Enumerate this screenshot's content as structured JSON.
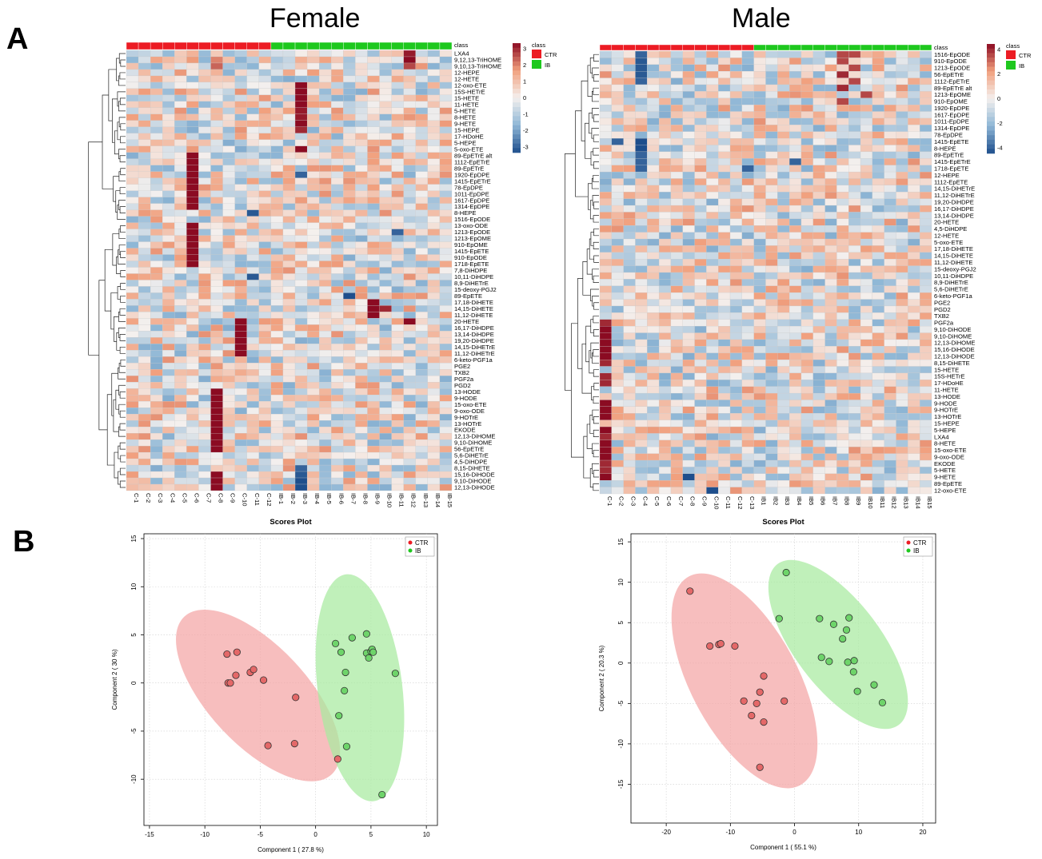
{
  "panels": {
    "a": "A",
    "b": "B"
  },
  "colors": {
    "ctr": "#ec1c24",
    "ib": "#1ec81e",
    "ctr_fill": "#f4a5a5",
    "ib_fill": "#a8eaa0",
    "heat_low": "#1e4e8c",
    "heat_mid": "#f4f0ee",
    "heat_high": "#8b0b22"
  },
  "chart_data": [
    {
      "type": "heatmap",
      "title": "Female",
      "annotation_label": "class",
      "legend": {
        "title": "class",
        "items": [
          "CTR",
          "IB"
        ]
      },
      "scale_ticks": [
        "3",
        "2",
        "1",
        "0",
        "-1",
        "-2",
        "-3"
      ],
      "dendrogram": true,
      "columns": [
        "C-1",
        "C-2",
        "C-3",
        "C-4",
        "C-5",
        "C-6",
        "C-7",
        "C-8",
        "C-9",
        "C-10",
        "C-11",
        "C-12",
        "IB-1",
        "IB-2",
        "IB-3",
        "IB-4",
        "IB-5",
        "IB-6",
        "IB-7",
        "IB-8",
        "IB-9",
        "IB-10",
        "IB-11",
        "IB-12",
        "IB-13",
        "IB-14",
        "IB-15"
      ],
      "column_class": [
        "CTR",
        "CTR",
        "CTR",
        "CTR",
        "CTR",
        "CTR",
        "CTR",
        "CTR",
        "CTR",
        "CTR",
        "CTR",
        "CTR",
        "IB",
        "IB",
        "IB",
        "IB",
        "IB",
        "IB",
        "IB",
        "IB",
        "IB",
        "IB",
        "IB",
        "IB",
        "IB",
        "IB",
        "IB"
      ],
      "rows": [
        "LXA4",
        "9,12,13-TriHOME",
        "9,10,13-TriHOME",
        "12-HEPE",
        "12-HETE",
        "12-oxo-ETE",
        "15S-HETrE",
        "15-HETE",
        "11-HETE",
        "5-HETE",
        "8-HETE",
        "9-HETE",
        "15-HEPE",
        "17-HDoHE",
        "5-HEPE",
        "5-oxo-ETE",
        "89-EpETrE alt",
        "1112-EpETrE",
        "89-EpETrE",
        "1920-EpDPE",
        "1415-EpETrE",
        "78-EpDPE",
        "1011-EpDPE",
        "1617-EpDPE",
        "1314-EpDPE",
        "8-HEPE",
        "1516-EpODE",
        "13-oxo-ODE",
        "1213-EpODE",
        "1213-EpOME",
        "910-EpOME",
        "1415-EpETE",
        "910-EpODE",
        "1718-EpETE",
        "7,8-DiHDPE",
        "10,11-DiHDPE",
        "8,9-DiHETrE",
        "15-deoxy-PGJ2",
        "89-EpETE",
        "17,18-DiHETE",
        "14,15-DiHETE",
        "11,12-DiHETE",
        "20-HETE",
        "16,17-DiHDPE",
        "13,14-DiHDPE",
        "19,20-DiHDPE",
        "14,15-DiHETrE",
        "11,12-DiHETrE",
        "6-keto-PGF1a",
        "PGE2",
        "TXB2",
        "PGF2a",
        "PGD2",
        "13-HODE",
        "9-HODE",
        "15-oxo-ETE",
        "9-oxo-ODE",
        "9-HOTrE",
        "13-HOTrE",
        "EKODE",
        "12,13-DiHOME",
        "9,10-DiHOME",
        "56-EpETrE",
        "5,6-DiHETrE",
        "4,5-DiHDPE",
        "8,15-DiHETE",
        "15,16-DiHODE",
        "9,10-DiHODE",
        "12,13-DiHODE"
      ]
    },
    {
      "type": "heatmap",
      "title": "Male",
      "annotation_label": "class",
      "legend": {
        "title": "class",
        "items": [
          "CTR",
          "IB"
        ]
      },
      "scale_ticks": [
        "4",
        "2",
        "0",
        "-2",
        "-4"
      ],
      "dendrogram": true,
      "columns": [
        "C-1",
        "C-2",
        "C-3",
        "C-4",
        "C-5",
        "C-6",
        "C-7",
        "C-8",
        "C-9",
        "C-10",
        "C-11",
        "C-12",
        "C-13",
        "IB1",
        "IB2",
        "IB3",
        "IB4",
        "IB5",
        "IB6",
        "IB7",
        "IB8",
        "IB9",
        "IB10",
        "IB11",
        "IB12",
        "IB13",
        "IB14",
        "IB15"
      ],
      "column_class": [
        "CTR",
        "CTR",
        "CTR",
        "CTR",
        "CTR",
        "CTR",
        "CTR",
        "CTR",
        "CTR",
        "CTR",
        "CTR",
        "CTR",
        "CTR",
        "IB",
        "IB",
        "IB",
        "IB",
        "IB",
        "IB",
        "IB",
        "IB",
        "IB",
        "IB",
        "IB",
        "IB",
        "IB",
        "IB",
        "IB"
      ],
      "rows": [
        "1516-EpODE",
        "910-EpODE",
        "1213-EpODE",
        "56-EpETrE",
        "1112-EpETrE",
        "89-EpETrE alt",
        "1213-EpOME",
        "910-EpOME",
        "1920-EpDPE",
        "1617-EpDPE",
        "1011-EpDPE",
        "1314-EpDPE",
        "78-EpDPE",
        "1415-EpETE",
        "8-HEPE",
        "89-EpETrE",
        "1415-EpETrE",
        "1718-EpETE",
        "12-HEPE",
        "1112-EpETE",
        "14,15-DiHETrE",
        "11,12-DiHETrE",
        "19,20-DiHDPE",
        "16,17-DiHDPE",
        "13,14-DiHDPE",
        "20-HETE",
        "4,5-DiHDPE",
        "12-HETE",
        "5-oxo-ETE",
        "17,18-DiHETE",
        "14,15-DiHETE",
        "11,12-DiHETE",
        "15-deoxy-PGJ2",
        "10,11-DiHDPE",
        "8,9-DiHETrE",
        "5,6-DiHETrE",
        "6-keto-PGF1a",
        "PGE2",
        "PGD2",
        "TXB2",
        "PGF2a",
        "9,10-DiHODE",
        "9,10-DiHOME",
        "12,13-DiHOME",
        "15,16-DiHODE",
        "12,13-DiHODE",
        "8,15-DiHETE",
        "15-HETE",
        "15S-HETrE",
        "17-HDoHE",
        "11-HETE",
        "13-HODE",
        "9-HODE",
        "9-HOTrE",
        "13-HOTrE",
        "15-HEPE",
        "5-HEPE",
        "LXA4",
        "8-HETE",
        "15-oxo-ETE",
        "9-oxo-ODE",
        "EKODE",
        "5-HETE",
        "9-HETE",
        "89-EpETE",
        "12-oxo-ETE"
      ]
    },
    {
      "type": "scatter",
      "title": "Scores Plot",
      "xlabel": "Component 1 ( 27.8 %)",
      "ylabel": "Component 2 ( 30 %)",
      "xlim": [
        -15.5,
        11
      ],
      "ylim": [
        -14.8,
        15.5
      ],
      "xticks": [
        -15,
        -10,
        -5,
        0,
        5,
        10
      ],
      "yticks": [
        -10,
        -5,
        0,
        5,
        10,
        15
      ],
      "legend_position": "top-right",
      "series": [
        {
          "name": "CTR",
          "points": [
            [
              -8.0,
              3.0
            ],
            [
              -7.1,
              3.2
            ],
            [
              -7.2,
              0.8
            ],
            [
              -7.9,
              0.0
            ],
            [
              -7.7,
              0.0
            ],
            [
              -5.9,
              1.1
            ],
            [
              -5.6,
              1.4
            ],
            [
              -4.7,
              0.3
            ],
            [
              -1.8,
              -1.5
            ],
            [
              -4.3,
              -6.5
            ],
            [
              -1.9,
              -6.3
            ],
            [
              2.0,
              -7.9
            ]
          ]
        },
        {
          "name": "IB",
          "points": [
            [
              1.8,
              4.1
            ],
            [
              2.3,
              3.2
            ],
            [
              3.3,
              4.7
            ],
            [
              4.6,
              5.1
            ],
            [
              2.7,
              1.1
            ],
            [
              4.6,
              3.1
            ],
            [
              4.8,
              2.6
            ],
            [
              5.0,
              3.3
            ],
            [
              5.1,
              3.5
            ],
            [
              5.2,
              3.2
            ],
            [
              7.2,
              1.0
            ],
            [
              2.6,
              -0.8
            ],
            [
              2.1,
              -3.4
            ],
            [
              2.8,
              -6.6
            ],
            [
              6.0,
              -11.6
            ]
          ]
        }
      ]
    },
    {
      "type": "scatter",
      "title": "Scores Plot",
      "xlabel": "Component 1 ( 55.1 %)",
      "ylabel": "Component 2 ( 20.3 %)",
      "xlim": [
        -25.5,
        22
      ],
      "ylim": [
        -19.8,
        16
      ],
      "xticks": [
        -20,
        -10,
        0,
        10,
        20
      ],
      "yticks": [
        -15,
        -10,
        -5,
        0,
        5,
        10,
        15
      ],
      "legend_position": "top-right",
      "series": [
        {
          "name": "CTR",
          "points": [
            [
              -16.3,
              8.9
            ],
            [
              -13.2,
              2.1
            ],
            [
              -11.8,
              2.3
            ],
            [
              -11.5,
              2.4
            ],
            [
              -9.3,
              2.1
            ],
            [
              -4.8,
              -1.6
            ],
            [
              -5.4,
              -3.6
            ],
            [
              -7.9,
              -4.7
            ],
            [
              -5.9,
              -5.0
            ],
            [
              -1.6,
              -4.7
            ],
            [
              -6.7,
              -6.5
            ],
            [
              -4.8,
              -7.3
            ],
            [
              -5.4,
              -12.9
            ]
          ]
        },
        {
          "name": "IB",
          "points": [
            [
              -1.3,
              11.2
            ],
            [
              -2.4,
              5.5
            ],
            [
              3.9,
              5.5
            ],
            [
              6.1,
              4.8
            ],
            [
              8.5,
              5.6
            ],
            [
              8.1,
              4.1
            ],
            [
              7.5,
              3.0
            ],
            [
              4.2,
              0.7
            ],
            [
              5.4,
              0.2
            ],
            [
              8.3,
              0.1
            ],
            [
              9.3,
              0.3
            ],
            [
              9.2,
              -1.1
            ],
            [
              9.8,
              -3.5
            ],
            [
              12.4,
              -2.7
            ],
            [
              13.7,
              -4.9
            ]
          ]
        }
      ]
    }
  ]
}
